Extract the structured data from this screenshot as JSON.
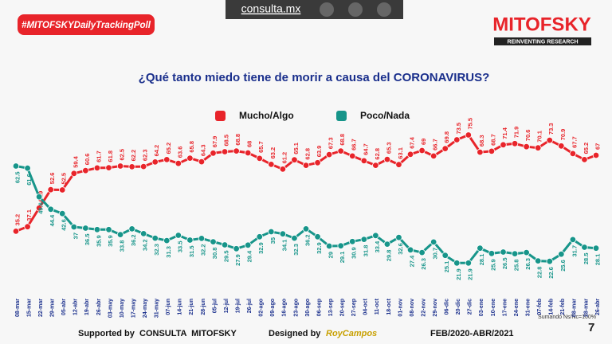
{
  "chart_data": {
    "type": "line",
    "title": "¿Qué tanto miedo tiene de morir a causa del CORONAVIRUS?",
    "hashtag": "#MITOFSKYDailyTrackingPoll",
    "site": "consulta.mx",
    "brand": "MITOFSKY",
    "brand_tagline": "REINVENTING RESEARCH",
    "note": "Sumando Ns/Nc=100%",
    "footer_left": "Supported by  CONSULTA  MITOFSKY",
    "footer_designed": "Designed by",
    "footer_designer": "RoyCampos",
    "footer_period": "FEB/2020-ABR/2021",
    "page_number": "7",
    "categories": [
      "08-mar",
      "15-mar",
      "22-mar",
      "29-mar",
      "05-abr",
      "12-abr",
      "19-abr",
      "26-abr",
      "03-may",
      "10-may",
      "17-may",
      "24-may",
      "31-may",
      "07-jun",
      "14-jun",
      "21-jun",
      "28-jun",
      "05-jul",
      "12-jul",
      "19-jul",
      "26-jul",
      "02-ago",
      "09-ago",
      "16-ago",
      "23-ago",
      "30-ago",
      "06-sep",
      "13-sep",
      "20-sep",
      "27-sep",
      "04-oct",
      "11-oct",
      "18-oct",
      "01-nov",
      "08-nov",
      "22-nov",
      "29-nov",
      "06-dic",
      "20-dic",
      "27-dic",
      "03-ene",
      "10-ene",
      "17-ene",
      "24-ene",
      "31-ene",
      "07-feb",
      "14-feb",
      "21-feb",
      "08-mar",
      "28-mar",
      "26-abr"
    ],
    "series": [
      {
        "name": "Mucho/Algo",
        "color": "#e8242a",
        "values": [
          35.2,
          37.1,
          44.9,
          52.6,
          52.5,
          59.4,
          60.6,
          61.7,
          61.8,
          62.5,
          62.2,
          62.3,
          64.2,
          65.2,
          63.6,
          65.8,
          64.3,
          67.9,
          68.5,
          68.8,
          68.0,
          65.7,
          63.2,
          61.2,
          65.1,
          62.8,
          63.9,
          67.3,
          68.8,
          66.7,
          64.7,
          62.8,
          65.3,
          63.1,
          67.4,
          69.0,
          66.7,
          69.8,
          73.5,
          75.5,
          68.3,
          68.7,
          71.4,
          71.9,
          70.6,
          70.1,
          73.3,
          70.9,
          67.7,
          65.2,
          67.0
        ]
      },
      {
        "name": "Poco/Nada",
        "color": "#17958a",
        "values": [
          62.5,
          61.6,
          49.6,
          44.4,
          42.6,
          37.0,
          36.5,
          35.9,
          35.9,
          33.8,
          36.2,
          34.2,
          32.3,
          31.3,
          33.5,
          31.5,
          32.2,
          30.8,
          29.5,
          27.9,
          29.4,
          32.9,
          35.0,
          34.1,
          32.3,
          36.2,
          32.9,
          29.0,
          29.1,
          30.9,
          31.8,
          33.4,
          29.8,
          32.6,
          27.4,
          26.3,
          30.7,
          25.1,
          21.9,
          21.9,
          28.1,
          25.9,
          26.5,
          25.8,
          26.3,
          22.8,
          22.6,
          25.6,
          31.7,
          28.5,
          28.1
        ]
      }
    ],
    "ylim": [
      10,
      85
    ]
  }
}
